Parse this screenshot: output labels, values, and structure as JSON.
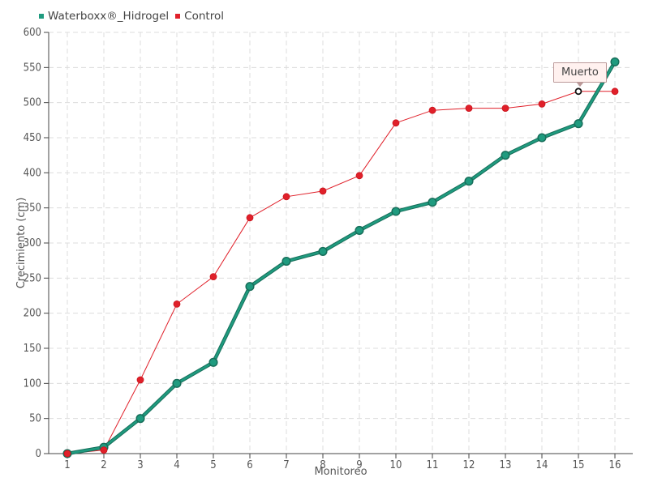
{
  "chart_data": {
    "type": "line",
    "xlabel": "Monitoreo",
    "ylabel": "Crecimiento (cm)",
    "categories": [
      "1",
      "2",
      "3",
      "4",
      "5",
      "6",
      "7",
      "8",
      "9",
      "10",
      "11",
      "12",
      "13",
      "14",
      "15",
      "16"
    ],
    "ylim": [
      0,
      600
    ],
    "yticks": [
      0,
      50,
      100,
      150,
      200,
      250,
      300,
      350,
      400,
      450,
      500,
      550,
      600
    ],
    "grid": true,
    "legend_position": "top-left",
    "series": [
      {
        "name": "Waterboxx®_Hidrogel",
        "color": "#1f9b7f",
        "values": [
          0,
          9,
          50,
          100,
          130,
          238,
          274,
          288,
          318,
          345,
          358,
          388,
          425,
          450,
          470,
          558
        ]
      },
      {
        "name": "Control",
        "color": "#e0202a",
        "values": [
          0,
          5,
          105,
          213,
          252,
          336,
          366,
          374,
          396,
          471,
          489,
          492,
          492,
          498,
          516,
          516
        ]
      }
    ],
    "annotation": {
      "text": "Muerto",
      "series": "Control",
      "category": "15"
    }
  }
}
